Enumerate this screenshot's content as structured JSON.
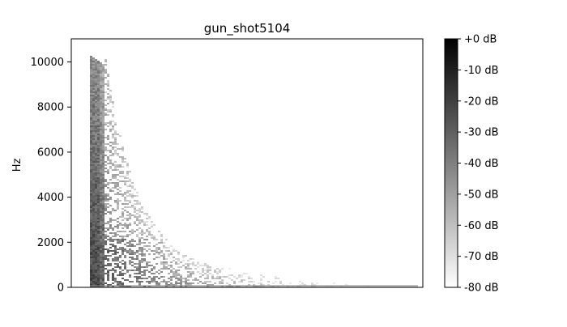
{
  "chart_data": {
    "type": "heatmap",
    "title": "gun_shot5104",
    "xlabel": "",
    "ylabel": "Hz",
    "ylim": [
      0,
      11025
    ],
    "y_ticks": [
      0,
      2000,
      4000,
      6000,
      8000,
      10000
    ],
    "y_tick_labels": [
      "0",
      "2000",
      "4000",
      "6000",
      "8000",
      "10000"
    ],
    "x_ticks_visible": false,
    "colormap": "gray_r",
    "colorbar": {
      "range": [
        -80,
        0
      ],
      "ticks": [
        0,
        -10,
        -20,
        -30,
        -40,
        -50,
        -60,
        -70,
        -80
      ],
      "tick_labels": [
        "+0 dB",
        "-10 dB",
        "-20 dB",
        "-30 dB",
        "-40 dB",
        "-50 dB",
        "-60 dB",
        "-70 dB",
        "-80 dB"
      ]
    },
    "content": "gunshot spectrogram: an intense broadband burst near the start, energy extending up to about 10400 Hz, decaying over time and persisting at low frequencies (below about 1000 Hz) in the following frames"
  }
}
